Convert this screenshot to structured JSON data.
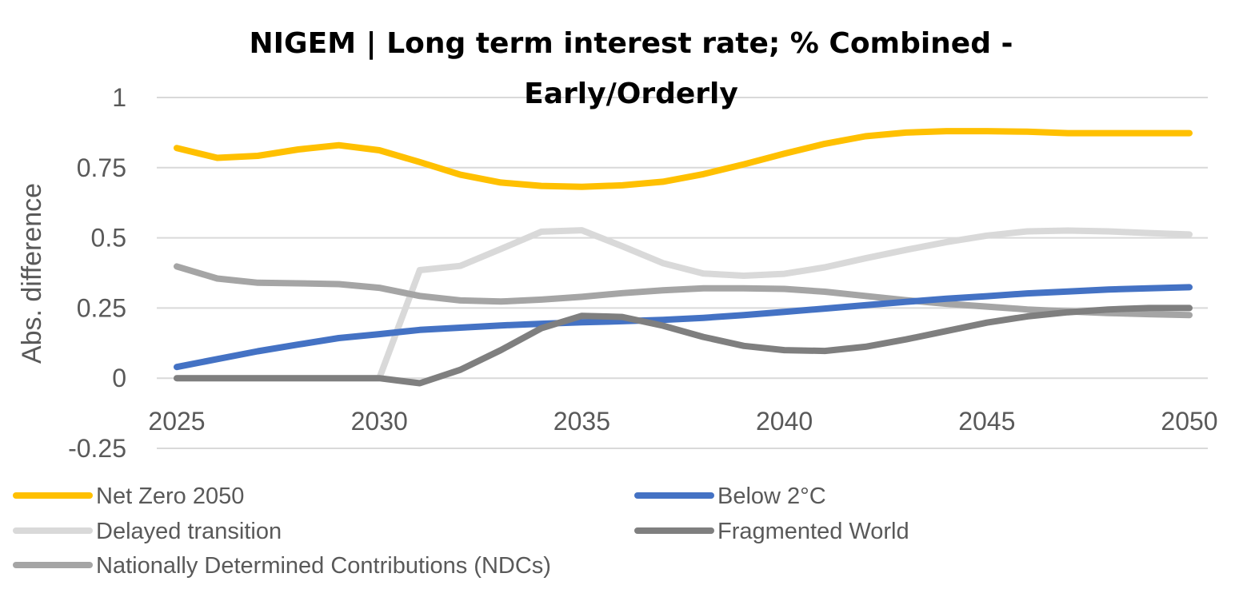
{
  "chart_data": {
    "type": "line",
    "title_lines": [
      "NIGEM | Long term interest rate; % Combined -",
      "Early/Orderly"
    ],
    "xlabel": "",
    "ylabel": "Abs. difference",
    "xlim": [
      2025,
      2050
    ],
    "ylim": [
      -0.25,
      1
    ],
    "x_ticks": [
      "2025",
      "2030",
      "2035",
      "2040",
      "2045",
      "2050"
    ],
    "y_ticks": [
      "1",
      "0.75",
      "0.5",
      "0.25",
      "0",
      "-0.25"
    ],
    "grid": true,
    "legend_position": "bottom",
    "x": [
      2025,
      2026,
      2027,
      2028,
      2029,
      2030,
      2031,
      2032,
      2033,
      2034,
      2035,
      2036,
      2037,
      2038,
      2039,
      2040,
      2041,
      2042,
      2043,
      2044,
      2045,
      2046,
      2047,
      2048,
      2049,
      2050
    ],
    "series": [
      {
        "name": "Net Zero 2050",
        "color": "#FFC000",
        "values": [
          0.82,
          0.785,
          0.792,
          0.815,
          0.83,
          0.812,
          0.77,
          0.725,
          0.697,
          0.685,
          0.682,
          0.687,
          0.7,
          0.727,
          0.762,
          0.8,
          0.835,
          0.862,
          0.875,
          0.88,
          0.88,
          0.878,
          0.873,
          0.873,
          0.873,
          0.873
        ]
      },
      {
        "name": "Below 2°C",
        "color": "#4472C4",
        "values": [
          0.04,
          0.068,
          0.096,
          0.12,
          0.143,
          0.157,
          0.172,
          0.18,
          0.188,
          0.194,
          0.199,
          0.203,
          0.208,
          0.215,
          0.225,
          0.236,
          0.248,
          0.26,
          0.272,
          0.283,
          0.292,
          0.302,
          0.309,
          0.316,
          0.32,
          0.324
        ]
      },
      {
        "name": "Delayed transition",
        "color": "#D9D9D9",
        "values": [
          0,
          0,
          0,
          0,
          0,
          0,
          0.385,
          0.4,
          0.46,
          0.522,
          0.527,
          0.47,
          0.41,
          0.373,
          0.365,
          0.372,
          0.395,
          0.427,
          0.457,
          0.485,
          0.508,
          0.523,
          0.526,
          0.523,
          0.517,
          0.512
        ]
      },
      {
        "name": "Fragmented World",
        "color": "#7F7F7F",
        "values": [
          0,
          0,
          0,
          0,
          0,
          0,
          -0.018,
          0.03,
          0.1,
          0.178,
          0.222,
          0.218,
          0.187,
          0.147,
          0.115,
          0.1,
          0.097,
          0.112,
          0.138,
          0.168,
          0.198,
          0.22,
          0.235,
          0.245,
          0.25,
          0.25
        ]
      },
      {
        "name": "Nationally Determined Contributions (NDCs)",
        "color": "#A5A5A5",
        "values": [
          0.398,
          0.355,
          0.34,
          0.338,
          0.335,
          0.322,
          0.293,
          0.277,
          0.273,
          0.28,
          0.29,
          0.303,
          0.313,
          0.32,
          0.32,
          0.318,
          0.308,
          0.293,
          0.278,
          0.265,
          0.255,
          0.245,
          0.238,
          0.232,
          0.228,
          0.225
        ]
      }
    ]
  }
}
